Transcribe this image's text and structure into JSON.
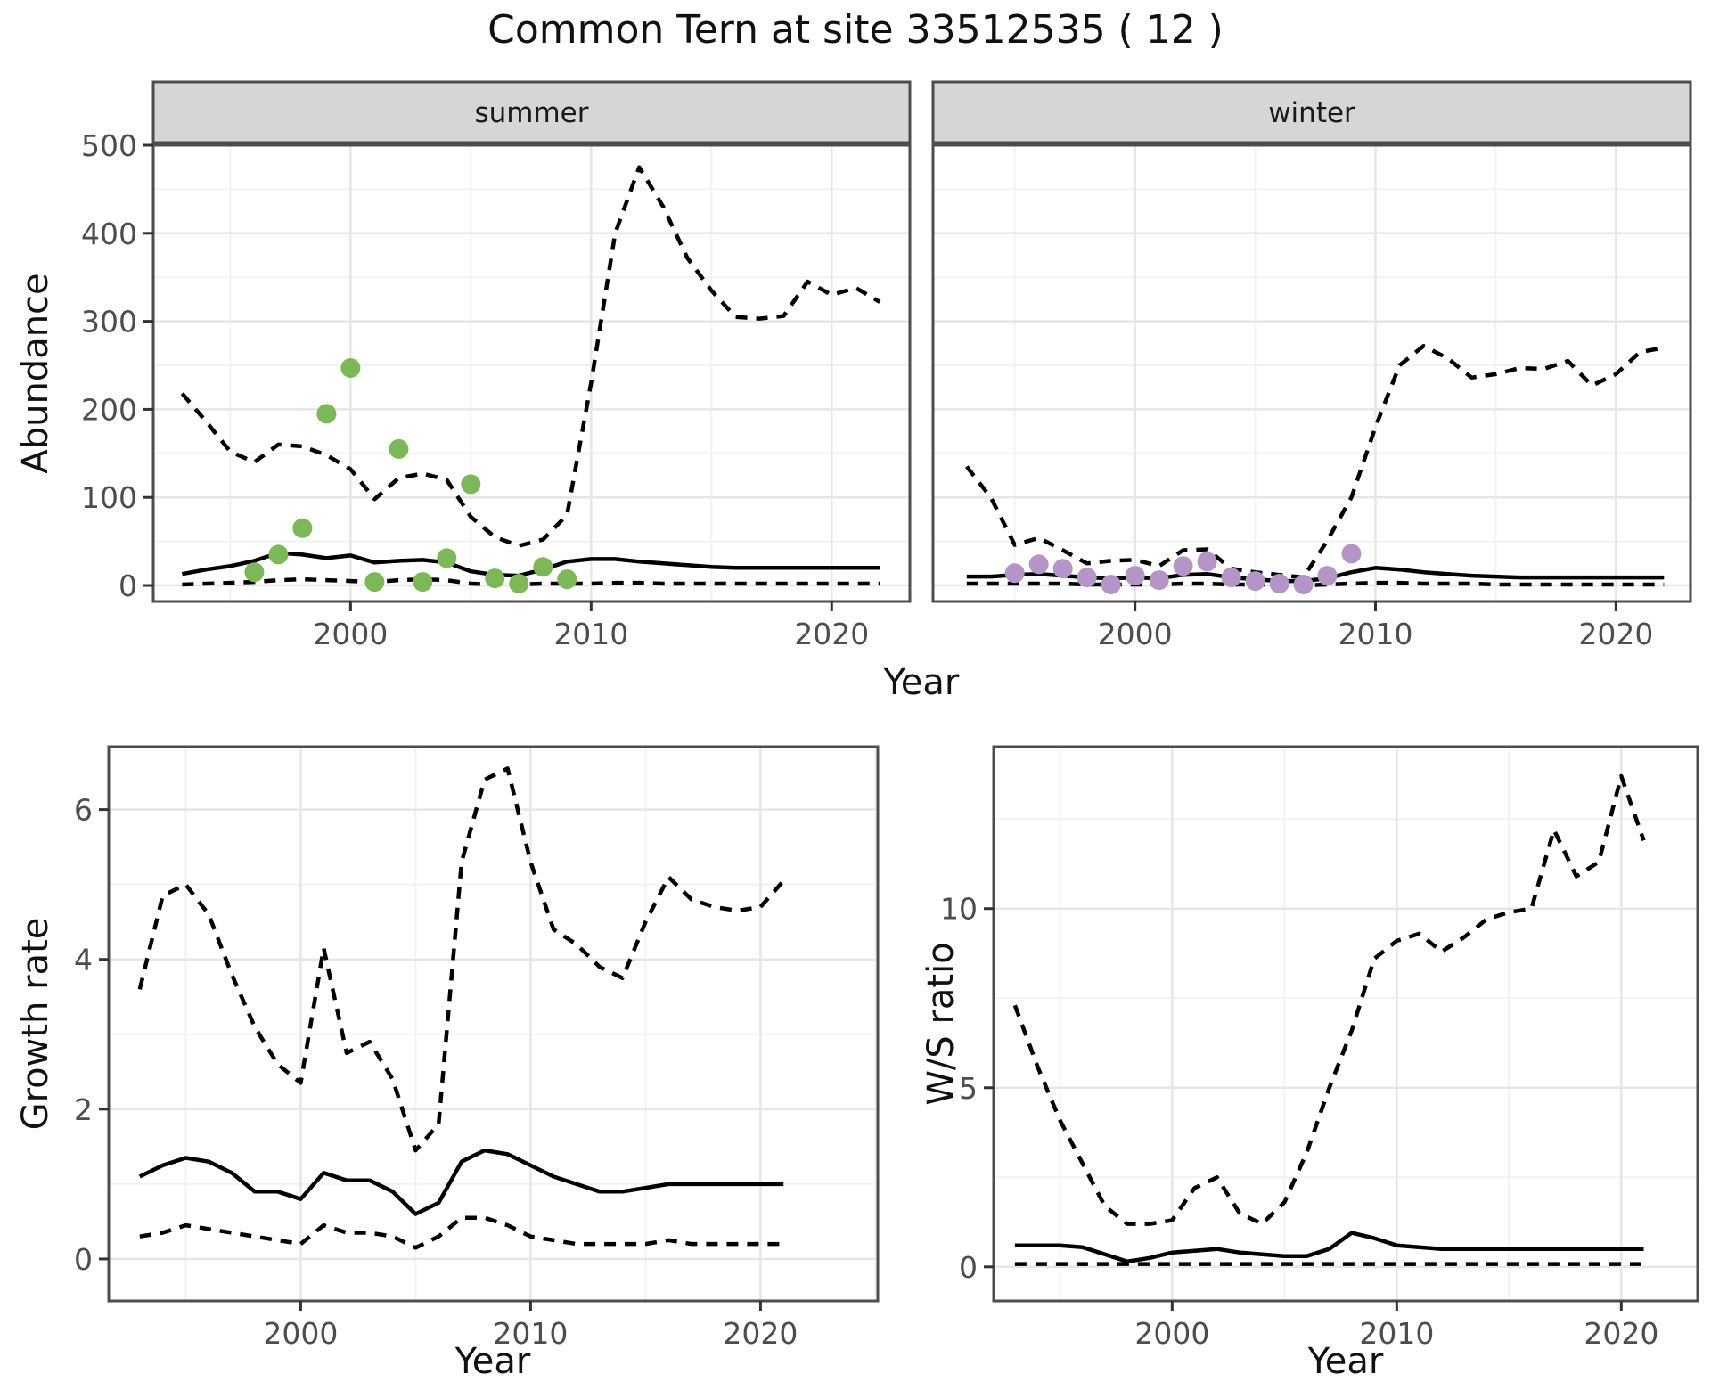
{
  "title": "Common Tern at site 33512535 ( 12 )",
  "colors": {
    "summer_points": "#7db858",
    "winter_points": "#b594c8",
    "line": "#000000",
    "grid_major": "#e6e6e6",
    "grid_minor": "#f2f2f2",
    "strip_bg": "#d6d6d6",
    "panel_border": "#4d4d4d",
    "tick_text": "#4d4d4d"
  },
  "chart_data": [
    {
      "id": "abundance_summer",
      "type": "line",
      "facet_label": "summer",
      "xlabel": "Year",
      "ylabel": "Abundance",
      "xlim": [
        1991.8,
        2023.25
      ],
      "ylim": [
        -18.2,
        500
      ],
      "xticks": [
        2000,
        2010,
        2020
      ],
      "yticks": [
        0,
        100,
        200,
        300,
        400,
        500
      ],
      "x_minor": [
        1995,
        2005,
        2015
      ],
      "y_minor": [
        50,
        150,
        250,
        350,
        450
      ],
      "legend": "none",
      "series": [
        {
          "name": "upper_ci",
          "style": "dashed",
          "color": "#000000",
          "x": [
            1993,
            1994,
            1995,
            1996,
            1997,
            1998,
            1999,
            2000,
            2001,
            2002,
            2003,
            2004,
            2005,
            2006,
            2007,
            2008,
            2009,
            2010,
            2011,
            2012,
            2013,
            2014,
            2015,
            2016,
            2017,
            2018,
            2019,
            2020,
            2021,
            2022
          ],
          "y": [
            218,
            186,
            152,
            140,
            160,
            158,
            148,
            132,
            98,
            122,
            127,
            120,
            78,
            55,
            45,
            52,
            80,
            230,
            400,
            475,
            430,
            372,
            335,
            305,
            303,
            306,
            345,
            330,
            338,
            322
          ]
        },
        {
          "name": "median",
          "style": "solid",
          "color": "#000000",
          "x": [
            1993,
            1994,
            1995,
            1996,
            1997,
            1998,
            1999,
            2000,
            2001,
            2002,
            2003,
            2004,
            2005,
            2006,
            2007,
            2008,
            2009,
            2010,
            2011,
            2012,
            2013,
            2014,
            2015,
            2016,
            2017,
            2018,
            2019,
            2020,
            2021,
            2022
          ],
          "y": [
            13,
            18,
            22,
            28,
            37,
            35,
            31,
            34,
            26,
            28,
            29,
            26,
            16,
            12,
            11,
            18,
            27,
            30,
            30,
            27,
            25,
            23,
            21,
            20,
            20,
            20,
            20,
            20,
            20,
            20
          ]
        },
        {
          "name": "lower_ci",
          "style": "dashed",
          "color": "#000000",
          "x": [
            1993,
            1994,
            1995,
            1996,
            1997,
            1998,
            1999,
            2000,
            2001,
            2002,
            2003,
            2004,
            2005,
            2006,
            2007,
            2008,
            2009,
            2010,
            2011,
            2012,
            2013,
            2014,
            2015,
            2016,
            2017,
            2018,
            2019,
            2020,
            2021,
            2022
          ],
          "y": [
            1,
            2,
            3,
            4,
            6,
            7,
            6,
            5,
            4,
            6,
            7,
            6,
            2,
            1,
            1,
            2,
            2,
            2,
            3,
            3,
            2,
            2,
            2,
            2,
            2,
            2,
            2,
            2,
            2,
            2
          ]
        },
        {
          "name": "observations",
          "style": "points",
          "color": "#7db858",
          "x": [
            1996,
            1997,
            1998,
            1999,
            2000,
            2001,
            2002,
            2003,
            2004,
            2005,
            2006,
            2007,
            2008,
            2009
          ],
          "y": [
            15,
            35,
            65,
            195,
            247,
            4,
            155,
            4,
            31,
            115,
            8,
            2,
            21,
            7
          ]
        }
      ]
    },
    {
      "id": "abundance_winter",
      "type": "line",
      "facet_label": "winter",
      "xlabel": "Year",
      "ylabel": "Abundance",
      "xlim": [
        1991.6,
        2023.1
      ],
      "ylim": [
        -18.2,
        500
      ],
      "xticks": [
        2000,
        2010,
        2020
      ],
      "yticks": [
        0,
        100,
        200,
        300,
        400,
        500
      ],
      "x_minor": [
        1995,
        2005,
        2015
      ],
      "y_minor": [
        50,
        150,
        250,
        350,
        450
      ],
      "legend": "none",
      "series": [
        {
          "name": "upper_ci",
          "style": "dashed",
          "color": "#000000",
          "x": [
            1993,
            1994,
            1995,
            1996,
            1997,
            1998,
            1999,
            2000,
            2001,
            2002,
            2003,
            2004,
            2005,
            2006,
            2007,
            2008,
            2009,
            2010,
            2011,
            2012,
            2013,
            2014,
            2015,
            2016,
            2017,
            2018,
            2019,
            2020,
            2021,
            2022
          ],
          "y": [
            135,
            100,
            46,
            54,
            40,
            25,
            28,
            29,
            22,
            40,
            41,
            19,
            15,
            12,
            9,
            51,
            100,
            180,
            250,
            272,
            258,
            236,
            240,
            247,
            246,
            255,
            227,
            240,
            265,
            270
          ]
        },
        {
          "name": "median",
          "style": "solid",
          "color": "#000000",
          "x": [
            1993,
            1994,
            1995,
            1996,
            1997,
            1998,
            1999,
            2000,
            2001,
            2002,
            2003,
            2004,
            2005,
            2006,
            2007,
            2008,
            2009,
            2010,
            2011,
            2012,
            2013,
            2014,
            2015,
            2016,
            2017,
            2018,
            2019,
            2020,
            2021,
            2022
          ],
          "y": [
            10,
            10,
            12,
            13,
            11,
            9,
            8,
            9,
            8,
            12,
            13,
            9,
            7,
            5,
            5,
            8,
            15,
            20,
            18,
            15,
            13,
            11,
            10,
            9,
            9,
            9,
            9,
            9,
            9,
            9
          ]
        },
        {
          "name": "lower_ci",
          "style": "dashed",
          "color": "#000000",
          "x": [
            1993,
            1994,
            1995,
            1996,
            1997,
            1998,
            1999,
            2000,
            2001,
            2002,
            2003,
            2004,
            2005,
            2006,
            2007,
            2008,
            2009,
            2010,
            2011,
            2012,
            2013,
            2014,
            2015,
            2016,
            2017,
            2018,
            2019,
            2020,
            2021,
            2022
          ],
          "y": [
            2,
            2,
            2,
            2,
            2,
            1,
            1,
            1,
            1,
            2,
            2,
            1,
            1,
            1,
            0,
            1,
            2,
            3,
            3,
            2,
            2,
            2,
            1,
            1,
            1,
            1,
            1,
            1,
            1,
            1
          ]
        },
        {
          "name": "observations",
          "style": "points",
          "color": "#b594c8",
          "x": [
            1995,
            1996,
            1997,
            1998,
            1999,
            2000,
            2001,
            2002,
            2003,
            2004,
            2005,
            2006,
            2007,
            2008,
            2009
          ],
          "y": [
            14,
            24,
            19,
            9,
            1,
            11,
            6,
            22,
            27,
            9,
            5,
            2,
            1,
            11,
            36
          ]
        }
      ]
    },
    {
      "id": "growth_rate",
      "type": "line",
      "facet_label": null,
      "xlabel": "Year",
      "ylabel": "Growth rate",
      "xlim": [
        1991.65,
        2025.1
      ],
      "ylim": [
        -0.56,
        6.84
      ],
      "xticks": [
        2000,
        2010,
        2020
      ],
      "yticks": [
        0,
        2,
        4,
        6
      ],
      "x_minor": [
        1995,
        2005,
        2015,
        2025
      ],
      "y_minor": [
        1,
        3,
        5
      ],
      "legend": "none",
      "series": [
        {
          "name": "upper_ci",
          "style": "dashed",
          "color": "#000000",
          "x": [
            1993,
            1994,
            1995,
            1996,
            1997,
            1998,
            1999,
            2000,
            2001,
            2002,
            2003,
            2004,
            2005,
            2006,
            2007,
            2008,
            2009,
            2010,
            2011,
            2012,
            2013,
            2014,
            2015,
            2016,
            2017,
            2018,
            2019,
            2020,
            2021
          ],
          "y": [
            3.6,
            4.85,
            5.0,
            4.6,
            3.8,
            3.1,
            2.6,
            2.35,
            4.15,
            2.75,
            2.9,
            2.4,
            1.45,
            1.8,
            5.3,
            6.4,
            6.55,
            5.3,
            4.4,
            4.2,
            3.9,
            3.75,
            4.5,
            5.1,
            4.8,
            4.7,
            4.65,
            4.7,
            5.05
          ]
        },
        {
          "name": "median",
          "style": "solid",
          "color": "#000000",
          "x": [
            1993,
            1994,
            1995,
            1996,
            1997,
            1998,
            1999,
            2000,
            2001,
            2002,
            2003,
            2004,
            2005,
            2006,
            2007,
            2008,
            2009,
            2010,
            2011,
            2012,
            2013,
            2014,
            2015,
            2016,
            2017,
            2018,
            2019,
            2020,
            2021
          ],
          "y": [
            1.1,
            1.25,
            1.35,
            1.3,
            1.15,
            0.9,
            0.9,
            0.8,
            1.15,
            1.05,
            1.05,
            0.9,
            0.6,
            0.75,
            1.3,
            1.45,
            1.4,
            1.25,
            1.1,
            1.0,
            0.9,
            0.9,
            0.95,
            1.0,
            1.0,
            1.0,
            1.0,
            1.0,
            1.0
          ]
        },
        {
          "name": "lower_ci",
          "style": "dashed",
          "color": "#000000",
          "x": [
            1993,
            1994,
            1995,
            1996,
            1997,
            1998,
            1999,
            2000,
            2001,
            2002,
            2003,
            2004,
            2005,
            2006,
            2007,
            2008,
            2009,
            2010,
            2011,
            2012,
            2013,
            2014,
            2015,
            2016,
            2017,
            2018,
            2019,
            2020,
            2021
          ],
          "y": [
            0.3,
            0.35,
            0.45,
            0.4,
            0.35,
            0.3,
            0.25,
            0.2,
            0.45,
            0.35,
            0.35,
            0.3,
            0.15,
            0.3,
            0.55,
            0.55,
            0.45,
            0.3,
            0.25,
            0.2,
            0.2,
            0.2,
            0.2,
            0.25,
            0.2,
            0.2,
            0.2,
            0.2,
            0.2
          ]
        }
      ]
    },
    {
      "id": "ws_ratio",
      "type": "line",
      "facet_label": null,
      "xlabel": "Year",
      "ylabel": "W/S ratio",
      "xlim": [
        1992.05,
        2023.4
      ],
      "ylim": [
        -0.95,
        14.52
      ],
      "xticks": [
        2000,
        2010,
        2020
      ],
      "yticks": [
        0,
        5,
        10
      ],
      "x_minor": [
        1995,
        2005,
        2015
      ],
      "y_minor": [
        2.5,
        7.5,
        12.5
      ],
      "legend": "none",
      "series": [
        {
          "name": "upper_ci",
          "style": "dashed",
          "color": "#000000",
          "x": [
            1993,
            1994,
            1995,
            1996,
            1997,
            1998,
            1999,
            2000,
            2001,
            2002,
            2003,
            2004,
            2005,
            2006,
            2007,
            2008,
            2009,
            2010,
            2011,
            2012,
            2013,
            2014,
            2015,
            2016,
            2017,
            2018,
            2019,
            2020,
            2021
          ],
          "y": [
            7.3,
            5.6,
            4.1,
            2.9,
            1.7,
            1.2,
            1.2,
            1.3,
            2.2,
            2.5,
            1.5,
            1.2,
            1.8,
            3.2,
            5.0,
            6.6,
            8.6,
            9.1,
            9.3,
            8.8,
            9.2,
            9.7,
            9.9,
            10.0,
            12.2,
            10.9,
            11.3,
            13.7,
            11.9
          ]
        },
        {
          "name": "median",
          "style": "solid",
          "color": "#000000",
          "x": [
            1993,
            1994,
            1995,
            1996,
            1997,
            1998,
            1999,
            2000,
            2001,
            2002,
            2003,
            2004,
            2005,
            2006,
            2007,
            2008,
            2009,
            2010,
            2011,
            2012,
            2013,
            2014,
            2015,
            2016,
            2017,
            2018,
            2019,
            2020,
            2021
          ],
          "y": [
            0.6,
            0.6,
            0.6,
            0.55,
            0.35,
            0.15,
            0.25,
            0.4,
            0.45,
            0.5,
            0.4,
            0.35,
            0.3,
            0.3,
            0.5,
            0.95,
            0.8,
            0.6,
            0.55,
            0.5,
            0.5,
            0.5,
            0.5,
            0.5,
            0.5,
            0.5,
            0.5,
            0.5,
            0.5
          ]
        },
        {
          "name": "lower_ci",
          "style": "dashed",
          "color": "#000000",
          "x": [
            1993,
            1994,
            1995,
            1996,
            1997,
            1998,
            1999,
            2000,
            2001,
            2002,
            2003,
            2004,
            2005,
            2006,
            2007,
            2008,
            2009,
            2010,
            2011,
            2012,
            2013,
            2014,
            2015,
            2016,
            2017,
            2018,
            2019,
            2020,
            2021
          ],
          "y": [
            0.08,
            0.08,
            0.08,
            0.08,
            0.08,
            0.08,
            0.08,
            0.08,
            0.08,
            0.08,
            0.08,
            0.08,
            0.08,
            0.08,
            0.08,
            0.08,
            0.08,
            0.08,
            0.08,
            0.08,
            0.08,
            0.08,
            0.08,
            0.08,
            0.08,
            0.08,
            0.08,
            0.08,
            0.08
          ]
        }
      ]
    }
  ]
}
